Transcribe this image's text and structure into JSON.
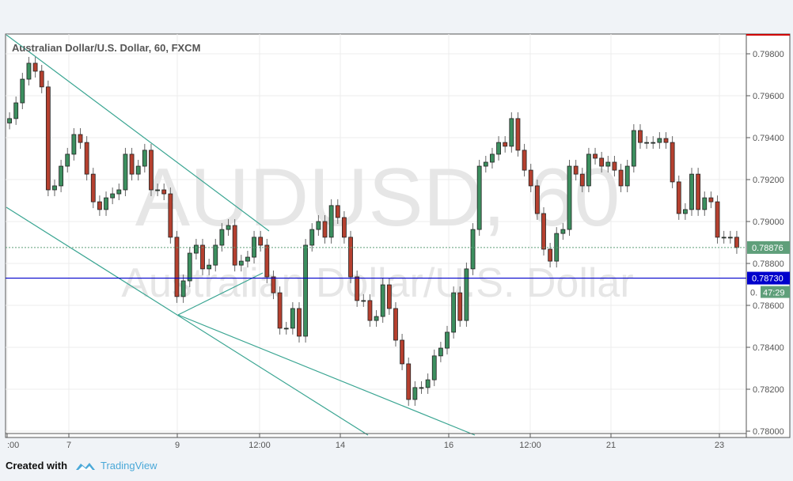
{
  "chart_data": {
    "type": "candlestick",
    "title": "Australian Dollar/U.S. Dollar, 60, FXCM",
    "watermark_symbol": "AUDUSD, 60",
    "watermark_name": "Australian Dollar/U.S. Dollar",
    "ylim": [
      0.7796,
      0.799
    ],
    "y_ticks": [
      "0.78000",
      "0.78200",
      "0.78400",
      "0.78600",
      "0.78800",
      "0.79000",
      "0.79200",
      "0.79400",
      "0.79600",
      "0.79800"
    ],
    "x_ticks": [
      ":00",
      "7",
      "9",
      "12:00",
      "14",
      "16",
      "12:00",
      "21",
      "23"
    ],
    "first_open": 0.7947,
    "closes": [
      0.79491,
      0.79566,
      0.79679,
      0.79755,
      0.79717,
      0.79642,
      0.79151,
      0.7917,
      0.79264,
      0.79321,
      0.79415,
      0.79377,
      0.79226,
      0.79094,
      0.79057,
      0.79113,
      0.79132,
      0.79151,
      0.79321,
      0.79226,
      0.79264,
      0.7934,
      0.79151,
      0.79151,
      0.79132,
      0.78925,
      0.78642,
      0.78717,
      0.78849,
      0.78887,
      0.78774,
      0.78792,
      0.78887,
      0.78962,
      0.78981,
      0.78792,
      0.78811,
      0.7883,
      0.78925,
      0.78887,
      0.78736,
      0.7866,
      0.78491,
      0.78491,
      0.78585,
      0.78453,
      0.78887,
      0.78962,
      0.79,
      0.78925,
      0.79076,
      0.79019,
      0.78925,
      0.78736,
      0.78623,
      0.78623,
      0.78528,
      0.78547,
      0.78698,
      0.78585,
      0.78434,
      0.78321,
      0.78151,
      0.78208,
      0.78208,
      0.78245,
      0.78359,
      0.78396,
      0.78472,
      0.7866,
      0.78528,
      0.78774,
      0.78962,
      0.79264,
      0.79283,
      0.79321,
      0.79377,
      0.79359,
      0.79491,
      0.7934,
      0.79245,
      0.7917,
      0.79038,
      0.78868,
      0.78811,
      0.78943,
      0.78962,
      0.79264,
      0.79226,
      0.7917,
      0.79321,
      0.79302,
      0.79264,
      0.79283,
      0.79245,
      0.7917,
      0.79264,
      0.79434,
      0.79377,
      0.79377,
      0.79377,
      0.79396,
      0.79377,
      0.79189,
      0.79038,
      0.79057,
      0.79226,
      0.79057,
      0.79113,
      0.79094,
      0.78925,
      0.78925,
      0.78925,
      0.78876
    ],
    "current_price": "0.78876",
    "countdown": "47:29",
    "countdown_prefix": "0.",
    "horizontal_line": "0.78730",
    "grid": true,
    "colors": {
      "up": "#3c8f5f",
      "down": "#b5402f",
      "trendline": "#3aa592",
      "hline": "#0000cc",
      "current": "#5f9f7a",
      "axis_top": "#d00000"
    }
  },
  "footer": {
    "created_with": "Created with",
    "brand": "TradingView"
  }
}
